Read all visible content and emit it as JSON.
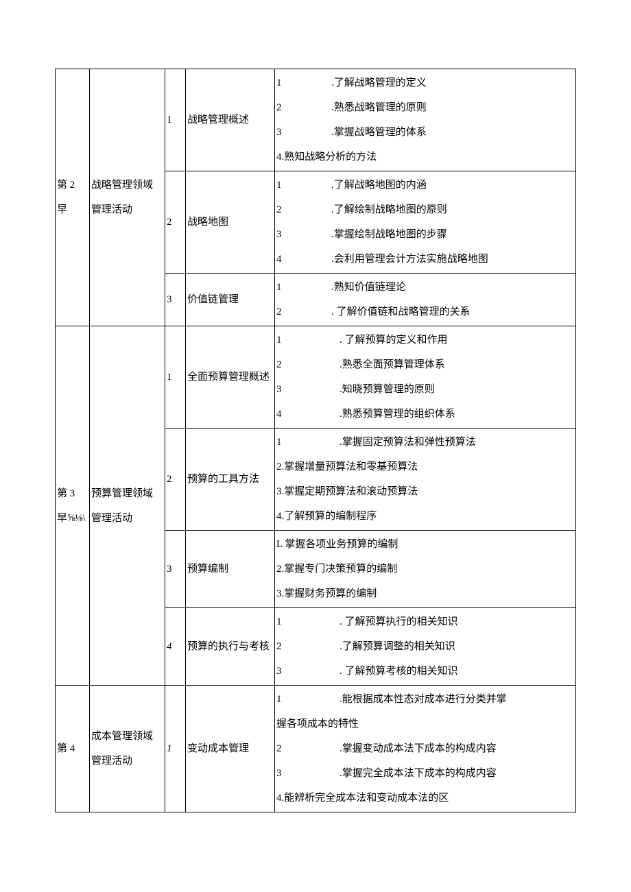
{
  "chapters": [
    {
      "chapter_label_lines": [
        "第 2",
        "早"
      ],
      "topic_lines": [
        "战略管理领域",
        "管理活动"
      ],
      "sections": [
        {
          "num": "1",
          "title": "战略管理概述",
          "objectives": [
            {
              "n": "1",
              "gap": "gap",
              "text": ".了解战略管理的定义"
            },
            {
              "n": "2",
              "gap": "gap",
              "text": ".熟悉战略管理的原则"
            },
            {
              "n": "3",
              "gap": "gap",
              "text": ".掌握战略管理的体系"
            },
            {
              "plain": "4.熟知战略分析的方法"
            }
          ]
        },
        {
          "num": "2",
          "title": "战略地图",
          "objectives": [
            {
              "n": "1",
              "gap": "gap",
              "text": ".了解战略地图的内涵"
            },
            {
              "n": "2",
              "gap": "gap",
              "text": ".了解绘制战略地图的原则"
            },
            {
              "n": "3",
              "gap": "gap",
              "text": ".掌握绘制战略地图的步骤"
            },
            {
              "n": "4",
              "gap": "gap",
              "text": ".会利用管理会计方法实施战略地图"
            }
          ]
        },
        {
          "num": "3",
          "title": "价值链管理",
          "objectives": [
            {
              "n": "1",
              "gap": "gap",
              "text": ".熟知价值链理论"
            },
            {
              "n": "2",
              "gap": "gap",
              "text": ". 了解价值链和战略管理的关系"
            }
          ]
        }
      ]
    },
    {
      "chapter_label_lines": [
        "第 3",
        "早⅝⅛\\"
      ],
      "topic_lines": [
        "预算管理领域",
        "管理活动"
      ],
      "sections": [
        {
          "num": "1",
          "title": "全面预算管理概述",
          "objectives": [
            {
              "n": "1",
              "gap": "gap-wide",
              "text": ". 了解预算的定义和作用"
            },
            {
              "n": "2",
              "gap": "gap-wide",
              "text": ".熟悉全面预算管理体系"
            },
            {
              "n": "3",
              "gap": "gap-wide",
              "text": ".知晓预算管理的原则"
            },
            {
              "n": "4",
              "gap": "gap-wide",
              "text": ".熟悉预算管理的组织体系"
            }
          ]
        },
        {
          "num": "2",
          "title": "预算的工具方法",
          "objectives": [
            {
              "n": "1",
              "gap": "gap-wide",
              "text": ".掌握固定预算法和弹性预算法"
            },
            {
              "plain": "2.掌握增量预算法和零基预算法"
            },
            {
              "plain": "3.掌握定期预算法和滚动预算法"
            },
            {
              "plain": "4.了解预算的编制程序"
            }
          ]
        },
        {
          "num": "3",
          "title": "预算编制",
          "objectives": [
            {
              "plain": "L 掌握各项业务预算的编制"
            },
            {
              "plain": "2.掌握专门决策预算的编制"
            },
            {
              "plain": "3.掌握财务预算的编制"
            }
          ]
        },
        {
          "num": "4",
          "num_italic": true,
          "title": "预算的执行与考核",
          "objectives": [
            {
              "n": "1",
              "gap": "gap-wide",
              "text": ". 了解预算执行的相关知识"
            },
            {
              "n": "2",
              "gap": "gap-wide",
              "text": ".了解预算调整的相关知识"
            },
            {
              "n": "3",
              "gap": "gap-wide",
              "text": ". 了解预算考核的相关知识"
            }
          ]
        }
      ]
    },
    {
      "chapter_label_lines": [
        "第 4"
      ],
      "topic_lines": [
        "成本管理领域",
        "管理活动"
      ],
      "sections": [
        {
          "num": "1",
          "num_italic": true,
          "title": "变动成本管理",
          "objectives": [
            {
              "n": "1",
              "gap": "gap-wide",
              "text": ".能根据成本性态对成本进行分类并掌"
            },
            {
              "plain": "握各项成本的特性"
            },
            {
              "n": "2",
              "gap": "gap-wide",
              "text": ".掌握变动成本法下成本的构成内容"
            },
            {
              "n": "3",
              "gap": "gap-wide",
              "text": ".掌握完全成本法下成本的构成内容"
            },
            {
              "plain": "4.能辨析完全成本法和变动成本法的区"
            }
          ]
        }
      ]
    }
  ]
}
